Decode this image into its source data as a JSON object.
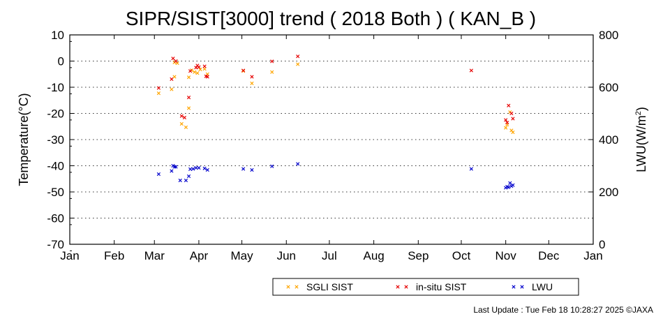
{
  "chart_data": {
    "type": "scatter",
    "title": "SIPR/SIST[3000] trend ( 2018 Both ) ( KAN_B )",
    "ylabel": "Temperature(°C)",
    "y2label_main": "LWU(W/m",
    "y2label_sup": "2",
    "y2label_end": ")",
    "ylim": [
      -70,
      10
    ],
    "y2lim": [
      0,
      800
    ],
    "yticks": [
      "10",
      "0",
      "-10",
      "-20",
      "-30",
      "-40",
      "-50",
      "-60",
      "-70"
    ],
    "y2ticks": [
      "800",
      "600",
      "400",
      "200",
      "0"
    ],
    "x_month_labels": [
      "Jan",
      "Feb",
      "Mar",
      "Apr",
      "May",
      "Jun",
      "Jul",
      "Aug",
      "Sep",
      "Oct",
      "Nov",
      "Dec",
      "Jan"
    ],
    "x_axis_unit": "day of year",
    "grid": "dotted horizontal",
    "legend_placement": "bottom",
    "series": [
      {
        "name": "SGLI SIST",
        "color": "#ffa500",
        "axis": "left",
        "points": [
          [
            63,
            -12.3
          ],
          [
            72,
            -10.8
          ],
          [
            74,
            -6.0
          ],
          [
            74,
            -0.5
          ],
          [
            76,
            -0.8
          ],
          [
            79,
            -24.0
          ],
          [
            82,
            -25.3
          ],
          [
            84,
            -18.0
          ],
          [
            84,
            -6.2
          ],
          [
            86,
            -3.5
          ],
          [
            88,
            -4.2
          ],
          [
            90,
            -4.6
          ],
          [
            92,
            -3.2
          ],
          [
            95,
            -3.0
          ],
          [
            97,
            -5.0
          ],
          [
            122,
            -3.8
          ],
          [
            128,
            -8.5
          ],
          [
            142,
            -4.2
          ],
          [
            160,
            -1.2
          ],
          [
            305,
            -25.5
          ],
          [
            306,
            -24.3
          ],
          [
            308,
            -19.5
          ],
          [
            309,
            -26.5
          ],
          [
            310,
            -27.2
          ]
        ]
      },
      {
        "name": "in-situ SIST",
        "color": "#e60000",
        "axis": "left",
        "points": [
          [
            63,
            -10.3
          ],
          [
            72,
            -6.9
          ],
          [
            73,
            1.0
          ],
          [
            75,
            0.0
          ],
          [
            79,
            -21.0
          ],
          [
            81,
            -21.6
          ],
          [
            84,
            -13.9
          ],
          [
            85,
            -3.8
          ],
          [
            89,
            -2.5
          ],
          [
            90,
            -1.7
          ],
          [
            91,
            -2.3
          ],
          [
            95,
            -2.0
          ],
          [
            96,
            -5.8
          ],
          [
            97,
            -6.0
          ],
          [
            122,
            -3.6
          ],
          [
            128,
            -6.0
          ],
          [
            142,
            -0.1
          ],
          [
            160,
            1.8
          ],
          [
            281,
            -3.6
          ],
          [
            305,
            -22.5
          ],
          [
            306,
            -23.5
          ],
          [
            307,
            -17.0
          ],
          [
            309,
            -20.0
          ],
          [
            310,
            -22.0
          ]
        ]
      },
      {
        "name": "LWU",
        "color": "#0000cc",
        "axis": "right",
        "points": [
          [
            63,
            268
          ],
          [
            72,
            280
          ],
          [
            73,
            300
          ],
          [
            74,
            296
          ],
          [
            75,
            296
          ],
          [
            78,
            244
          ],
          [
            82,
            244
          ],
          [
            84,
            260
          ],
          [
            85,
            287
          ],
          [
            87,
            288
          ],
          [
            89,
            292
          ],
          [
            91,
            292
          ],
          [
            95,
            290
          ],
          [
            97,
            284
          ],
          [
            122,
            288
          ],
          [
            128,
            284
          ],
          [
            142,
            298
          ],
          [
            160,
            307
          ],
          [
            281,
            288
          ],
          [
            305,
            216
          ],
          [
            306,
            220
          ],
          [
            307,
            218
          ],
          [
            308,
            234
          ],
          [
            309,
            222
          ],
          [
            310,
            226
          ]
        ]
      }
    ]
  },
  "footer": {
    "last_update": "Last Update : Tue Feb 18 10:28:27 2025  ©JAXA"
  }
}
